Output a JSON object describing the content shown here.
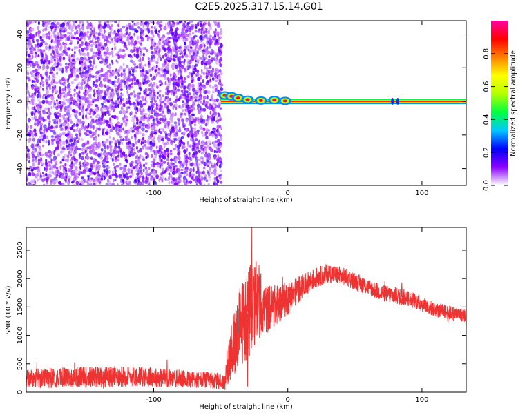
{
  "title": "C2E5.2025.317.15.14.G01",
  "chart_data": [
    {
      "type": "heatmap",
      "xlabel": "Height of straight line (km)",
      "ylabel": "Frequency (Hz)",
      "xlim": [
        -195,
        133
      ],
      "ylim": [
        -50,
        48
      ],
      "xticks": [
        -100,
        0,
        100
      ],
      "xtick_labels": [
        "-100",
        "0",
        "100"
      ],
      "yticks": [
        -40,
        -20,
        0,
        20,
        40
      ],
      "ytick_labels": [
        "-40",
        "-20",
        "0",
        "20",
        "40"
      ],
      "noise_region_x": [
        -195,
        -50
      ],
      "signal_region_x": [
        -50,
        133
      ],
      "signal_frequency_hz": 0,
      "grid": false,
      "colorbar": {
        "label": "Normalized spectral amplitude",
        "range": [
          0,
          1
        ],
        "ticks": [
          0.0,
          0.2,
          0.4,
          0.6,
          0.8
        ],
        "tick_labels": [
          "0.0",
          "0.2",
          "0.4",
          "0.6",
          "0.8"
        ],
        "colors": [
          "#ffffff",
          "#8a00ff",
          "#0000ff",
          "#00c8ff",
          "#00ff40",
          "#b4ff00",
          "#ffff00",
          "#ff8000",
          "#ff0000",
          "#ff00a0"
        ]
      }
    },
    {
      "type": "line",
      "xlabel": "Height of straight line (km)",
      "ylabel": "SNR (10 * v/v)",
      "xlim": [
        -195,
        133
      ],
      "ylim": [
        0,
        2900
      ],
      "xticks": [
        -100,
        0,
        100
      ],
      "xtick_labels": [
        "-100",
        "0",
        "100"
      ],
      "yticks": [
        0,
        500,
        1000,
        1500,
        2000,
        2500
      ],
      "ytick_labels": [
        "0",
        "500",
        "1000",
        "1500",
        "2000",
        "2500"
      ],
      "color": "#ee3333",
      "grid": false,
      "envelope": {
        "x": [
          -195,
          -170,
          -140,
          -110,
          -80,
          -60,
          -47,
          -42,
          -37,
          -32,
          -27,
          -22,
          -17,
          -12,
          -7,
          0,
          10,
          20,
          30,
          40,
          50,
          60,
          70,
          80,
          90,
          100,
          110,
          120,
          133
        ],
        "mean": [
          230,
          260,
          270,
          280,
          230,
          210,
          180,
          700,
          1100,
          1300,
          1500,
          1600,
          1450,
          1500,
          1550,
          1650,
          1850,
          2000,
          2100,
          2050,
          1950,
          1850,
          1750,
          1700,
          1650,
          1550,
          1450,
          1400,
          1350
        ],
        "amp": [
          170,
          180,
          190,
          180,
          160,
          150,
          150,
          500,
          700,
          800,
          800,
          700,
          450,
          400,
          350,
          300,
          220,
          180,
          170,
          160,
          150,
          150,
          150,
          150,
          140,
          140,
          130,
          130,
          120
        ]
      },
      "spikes": [
        {
          "x": -27,
          "y": 2900
        },
        {
          "x": -30,
          "y": 100
        },
        {
          "x": 85,
          "y": 1930
        }
      ]
    }
  ]
}
